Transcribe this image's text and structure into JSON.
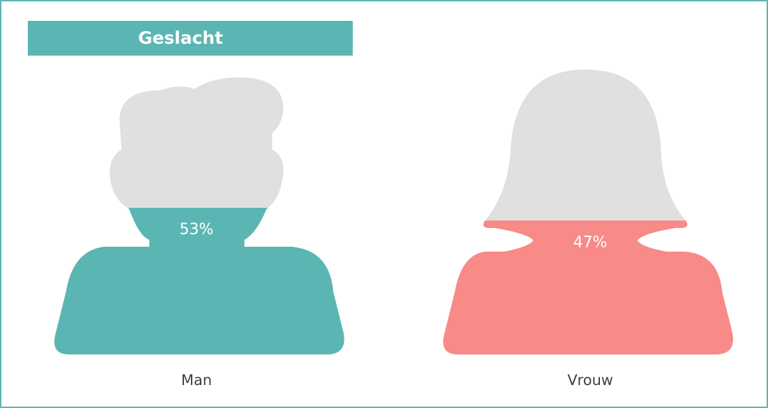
{
  "chart_data": {
    "type": "pictogram",
    "title": "Geslacht",
    "categories": [
      "Man",
      "Vrouw"
    ],
    "values": [
      53,
      47
    ],
    "value_labels": [
      "53%",
      "47%"
    ],
    "colors": [
      "#5bb6b3",
      "#f88a87"
    ],
    "empty_color": "#e0e0e0"
  }
}
